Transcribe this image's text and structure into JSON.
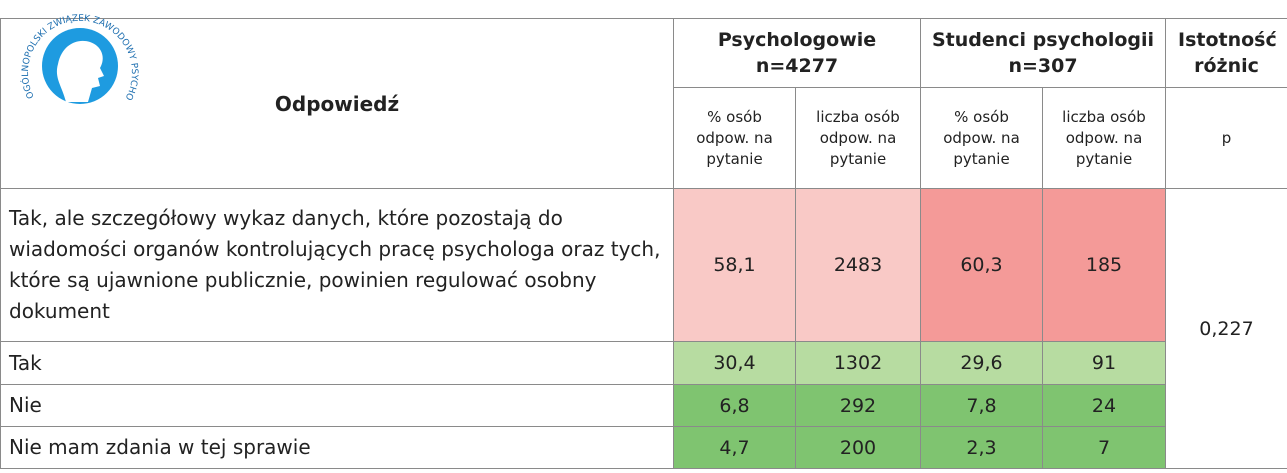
{
  "logo": {
    "text": "OGÓLNOPOLSKI ZWIĄZEK ZAWODOWY PSYCHOLOGÓW"
  },
  "table": {
    "header": {
      "answer": "Odpowiedź",
      "groups": [
        {
          "name": "Psychologowie",
          "n": "n=4277"
        },
        {
          "name": "Studenci psychologii",
          "n": "n=307"
        },
        {
          "name": "Istotność różnic"
        }
      ],
      "subheaders": [
        "% osób odpow. na pytanie",
        "liczba osób odpow. na pytanie",
        "% osób odpow. na pytanie",
        "liczba osób odpow. na pytanie",
        "p"
      ]
    },
    "rows": [
      [
        "Tak, ale szczegółowy wykaz danych, które pozostają do wiadomości organów kontrolujących pracę psychologa oraz tych, które są ujawnione publicznie, powinien regulować osobny dokument",
        "58,1",
        "2483",
        "60,3",
        "185"
      ],
      [
        "Tak",
        "30,4",
        "1302",
        "29,6",
        "91"
      ],
      [
        "Nie",
        "6,8",
        "292",
        "7,8",
        "24"
      ],
      [
        "Nie mam zdania w tej sprawie",
        "4,7",
        "200",
        "2,3",
        "7"
      ]
    ],
    "p_value": "0,227"
  }
}
